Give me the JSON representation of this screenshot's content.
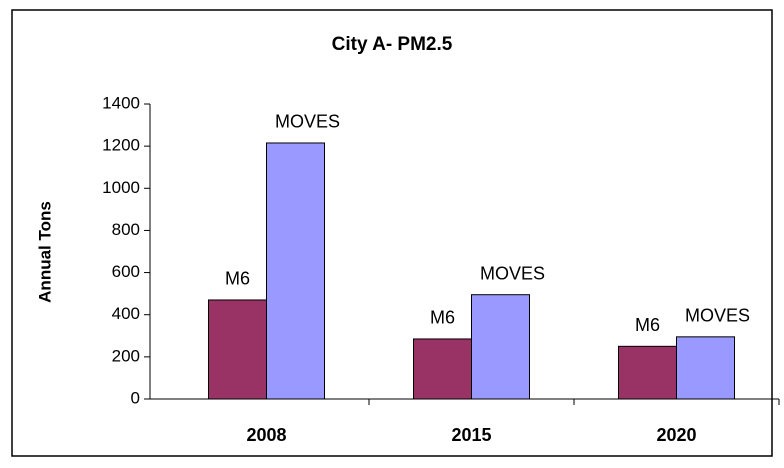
{
  "chart_data": {
    "type": "bar",
    "title": "City A- PM2.5",
    "y_label": "Annual Tons",
    "categories": [
      "2008",
      "2015",
      "2020"
    ],
    "series": [
      {
        "name": "M6",
        "color": "#993366",
        "values": [
          470,
          285,
          250
        ]
      },
      {
        "name": "MOVES",
        "color": "#9999ff",
        "values": [
          1215,
          495,
          295
        ]
      }
    ],
    "ylim": [
      0,
      1400
    ],
    "yticks": [
      0,
      200,
      400,
      600,
      800,
      1000,
      1200,
      1400
    ]
  }
}
